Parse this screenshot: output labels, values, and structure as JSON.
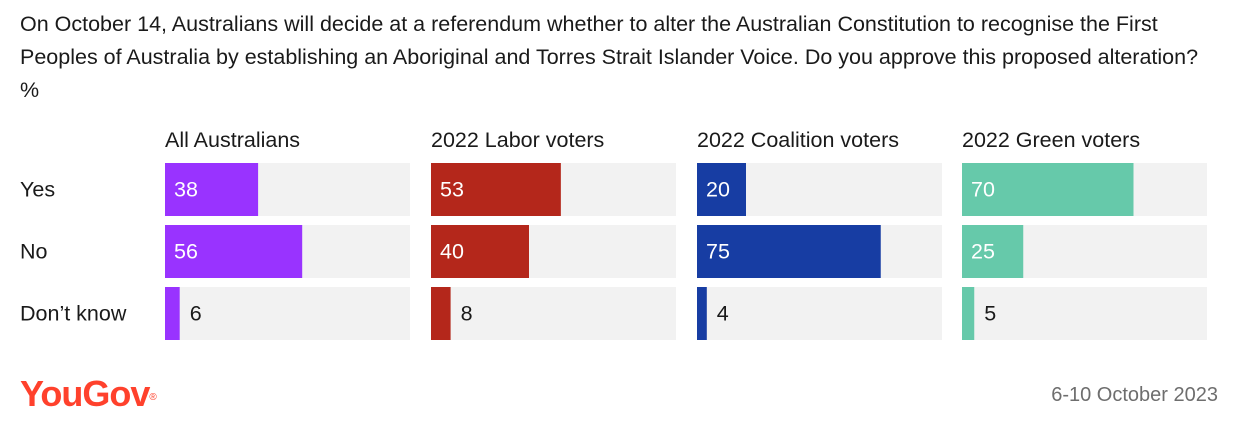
{
  "title": "On October 14, Australians will decide at a referendum whether to alter the Australian Constitution to recognise the First Peoples of Australia by establishing an Aboriginal and Torres Strait Islander Voice. Do you approve this proposed alteration? %",
  "footer": {
    "brand": "YouGov",
    "trademark": "®",
    "date": "6-10 October 2023"
  },
  "colors": {
    "track": "#f2f2f2",
    "label_light": "#ffffff",
    "label_dark": "#1a1a1a"
  },
  "chart_data": {
    "type": "bar",
    "orientation": "horizontal",
    "categories": [
      "Yes",
      "No",
      "Don’t know"
    ],
    "xlim": [
      0,
      100
    ],
    "panels": [
      {
        "name": "All Australians",
        "color": "#9933ff",
        "values": [
          38,
          56,
          6
        ]
      },
      {
        "name": "2022 Labor voters",
        "color": "#b4271b",
        "values": [
          53,
          40,
          8
        ]
      },
      {
        "name": "2022 Coalition voters",
        "color": "#173da3",
        "values": [
          20,
          75,
          4
        ]
      },
      {
        "name": "2022 Green voters",
        "color": "#66c9aa",
        "values": [
          70,
          25,
          5
        ]
      }
    ]
  }
}
